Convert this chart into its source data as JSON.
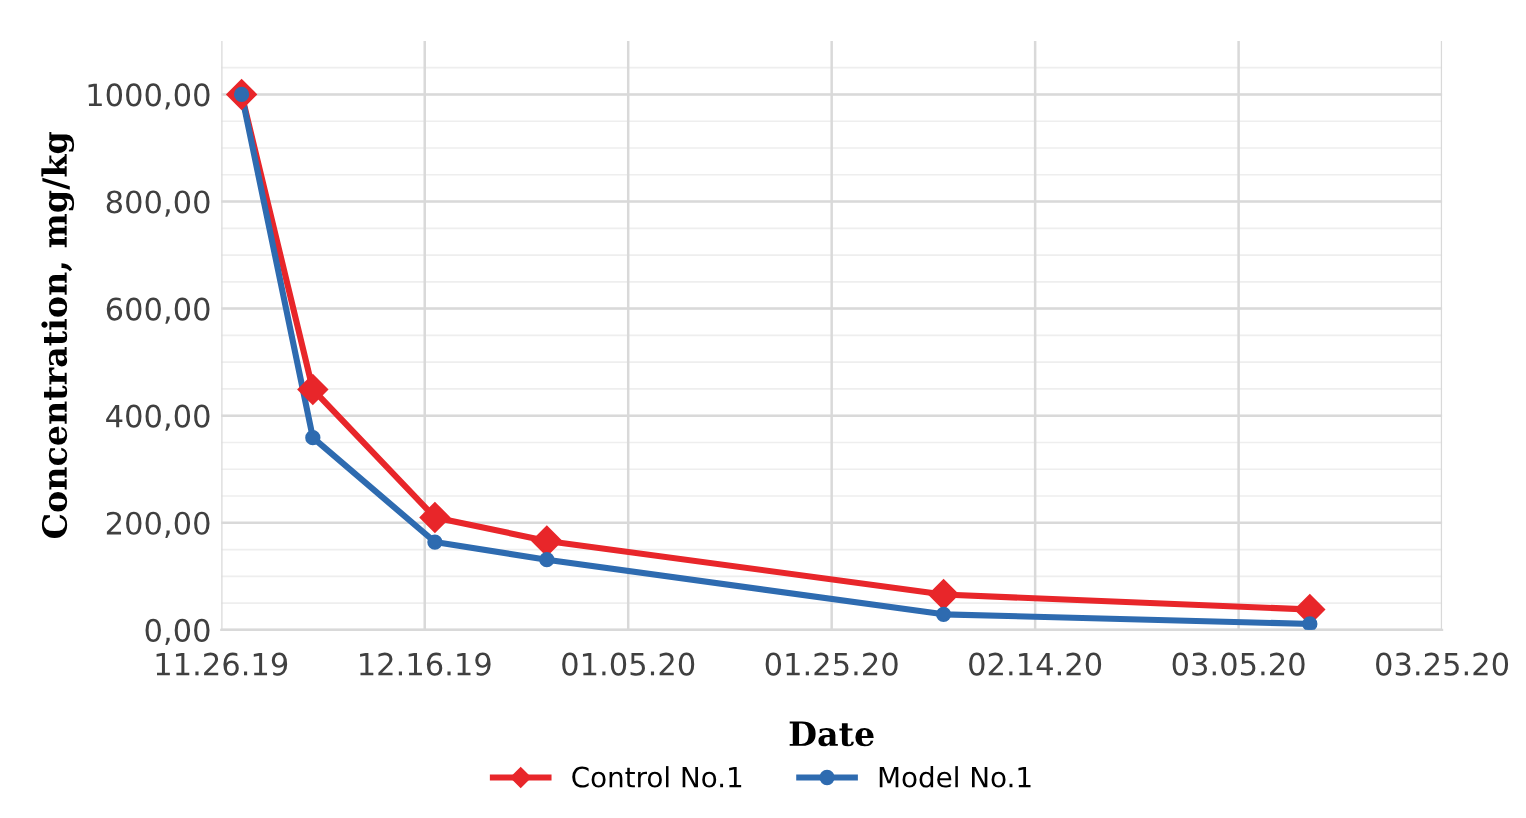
{
  "chart_data": {
    "type": "line",
    "xlabel": "Date",
    "ylabel": "Concentration, mg/kg",
    "x": [
      "2019-11-28",
      "2019-12-05",
      "2019-12-17",
      "2019-12-28",
      "2020-02-05",
      "2020-03-12"
    ],
    "series": [
      {
        "name": "Control No.1",
        "color": "#e8262a",
        "marker": "diamond",
        "values": [
          1000,
          449,
          210,
          166,
          66,
          38
        ]
      },
      {
        "name": "Model No.1",
        "color": "#2e6bb0",
        "marker": "circle",
        "values": [
          1000,
          359,
          164,
          131,
          29,
          11
        ]
      }
    ],
    "xlim": [
      "2019-11-26",
      "2020-03-25"
    ],
    "xticks": [
      {
        "value": "2019-11-26",
        "label": "11.26.19"
      },
      {
        "value": "2019-12-16",
        "label": "12.16.19"
      },
      {
        "value": "2020-01-05",
        "label": "01.05.20"
      },
      {
        "value": "2020-01-25",
        "label": "01.25.20"
      },
      {
        "value": "2020-02-14",
        "label": "02.14.20"
      },
      {
        "value": "2020-03-05",
        "label": "03.05.20"
      },
      {
        "value": "2020-03-25",
        "label": "03.25.20"
      }
    ],
    "ylim": [
      0,
      1100
    ],
    "yticks": [
      {
        "value": 0,
        "label": "0,00"
      },
      {
        "value": 200,
        "label": "200,00"
      },
      {
        "value": 400,
        "label": "400,00"
      },
      {
        "value": 600,
        "label": "600,00"
      },
      {
        "value": 800,
        "label": "800,00"
      },
      {
        "value": 1000,
        "label": "1000,00"
      }
    ],
    "grid": true,
    "legend": "bottom",
    "line_style": "solid"
  }
}
